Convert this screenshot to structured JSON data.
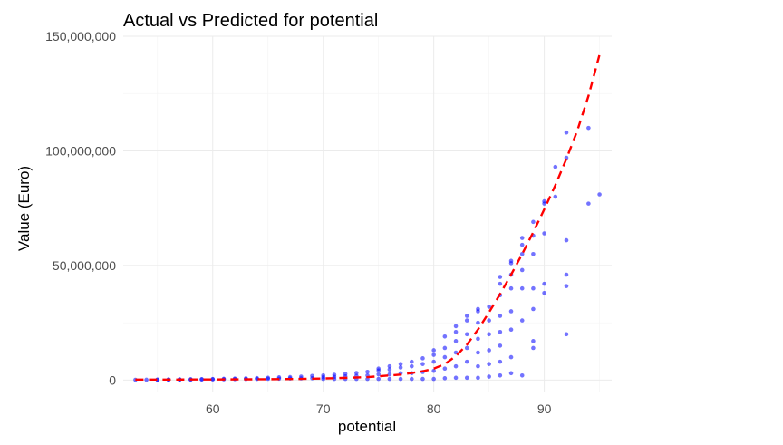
{
  "chart_data": {
    "type": "scatter",
    "title": "Actual vs Predicted for potential",
    "xlabel": "potential",
    "ylabel": "Value (Euro)",
    "xlim": [
      51.9,
      96.1
    ],
    "ylim": [
      -5000000,
      150000000
    ],
    "x_ticks": [
      60,
      70,
      80,
      90
    ],
    "x_tick_labels": [
      "60",
      "70",
      "80",
      "90"
    ],
    "y_ticks": [
      0,
      50000000,
      100000000,
      150000000
    ],
    "y_tick_labels": [
      "0",
      "50,000,000",
      "100,000,000",
      "150,000,000"
    ],
    "grid": true,
    "colors": {
      "points": "#0000ff",
      "fit_line": "#ff0000",
      "grid": "#ebebeb"
    },
    "series": [
      {
        "kind": "points",
        "points": [
          [
            53,
            120000
          ],
          [
            54,
            150000
          ],
          [
            55,
            120000
          ],
          [
            55,
            200000
          ],
          [
            56,
            150000
          ],
          [
            56,
            250000
          ],
          [
            57,
            200000
          ],
          [
            57,
            300000
          ],
          [
            58,
            200000
          ],
          [
            58,
            350000
          ],
          [
            59,
            250000
          ],
          [
            59,
            400000
          ],
          [
            60,
            300000
          ],
          [
            60,
            450000
          ],
          [
            61,
            350000
          ],
          [
            61,
            550000
          ],
          [
            62,
            400000
          ],
          [
            62,
            650000
          ],
          [
            63,
            450000
          ],
          [
            63,
            750000
          ],
          [
            64,
            500000
          ],
          [
            64,
            850000
          ],
          [
            65,
            550000
          ],
          [
            65,
            1000000
          ],
          [
            66,
            600000
          ],
          [
            66,
            1200000
          ],
          [
            67,
            700000
          ],
          [
            67,
            1300000
          ],
          [
            68,
            750000
          ],
          [
            68,
            1500000
          ],
          [
            69,
            800000
          ],
          [
            69,
            1800000
          ],
          [
            70,
            500000
          ],
          [
            70,
            1200000
          ],
          [
            70,
            2000000
          ],
          [
            71,
            500000
          ],
          [
            71,
            1400000
          ],
          [
            71,
            2300000
          ],
          [
            72,
            500000
          ],
          [
            72,
            1600000
          ],
          [
            72,
            2700000
          ],
          [
            73,
            500000
          ],
          [
            73,
            1800000
          ],
          [
            73,
            3100000
          ],
          [
            74,
            500000
          ],
          [
            74,
            2000000
          ],
          [
            74,
            3600000
          ],
          [
            75,
            500000
          ],
          [
            75,
            2500000
          ],
          [
            75,
            4200000
          ],
          [
            75,
            5000000
          ],
          [
            76,
            500000
          ],
          [
            76,
            2500000
          ],
          [
            76,
            4600000
          ],
          [
            76,
            6000000
          ],
          [
            77,
            500000
          ],
          [
            77,
            3000000
          ],
          [
            77,
            5500000
          ],
          [
            77,
            7000000
          ],
          [
            78,
            500000
          ],
          [
            78,
            3000000
          ],
          [
            78,
            6000000
          ],
          [
            78,
            8000000
          ],
          [
            79,
            500000
          ],
          [
            79,
            3500000
          ],
          [
            79,
            7000000
          ],
          [
            79,
            9500000
          ],
          [
            80,
            500000
          ],
          [
            80,
            4000000
          ],
          [
            80,
            8000000
          ],
          [
            80,
            11000000
          ],
          [
            80,
            13000000
          ],
          [
            81,
            800000
          ],
          [
            81,
            5000000
          ],
          [
            81,
            10000000
          ],
          [
            81,
            14000000
          ],
          [
            81,
            19000000
          ],
          [
            82,
            1000000
          ],
          [
            82,
            6000000
          ],
          [
            82,
            12000000
          ],
          [
            82,
            17000000
          ],
          [
            82,
            21000000
          ],
          [
            82,
            23500000
          ],
          [
            83,
            1000000
          ],
          [
            83,
            8000000
          ],
          [
            83,
            14000000
          ],
          [
            83,
            20000000
          ],
          [
            83,
            26000000
          ],
          [
            83,
            28000000
          ],
          [
            84,
            1000000
          ],
          [
            84,
            6000000
          ],
          [
            84,
            12000000
          ],
          [
            84,
            18000000
          ],
          [
            84,
            25000000
          ],
          [
            84,
            30000000
          ],
          [
            84,
            31000000
          ],
          [
            85,
            1500000
          ],
          [
            85,
            7000000
          ],
          [
            85,
            13000000
          ],
          [
            85,
            20000000
          ],
          [
            85,
            26000000
          ],
          [
            85,
            32000000
          ],
          [
            86,
            2000000
          ],
          [
            86,
            8000000
          ],
          [
            86,
            15000000
          ],
          [
            86,
            21000000
          ],
          [
            86,
            28000000
          ],
          [
            86,
            37000000
          ],
          [
            86,
            42000000
          ],
          [
            86,
            45000000
          ],
          [
            87,
            3000000
          ],
          [
            87,
            10000000
          ],
          [
            87,
            22000000
          ],
          [
            87,
            30000000
          ],
          [
            87,
            40000000
          ],
          [
            87,
            46000000
          ],
          [
            87,
            51000000
          ],
          [
            87,
            52000000
          ],
          [
            88,
            2000000
          ],
          [
            88,
            26000000
          ],
          [
            88,
            40000000
          ],
          [
            88,
            48000000
          ],
          [
            88,
            55000000
          ],
          [
            88,
            59000000
          ],
          [
            88,
            62000000
          ],
          [
            89,
            14000000
          ],
          [
            89,
            17000000
          ],
          [
            89,
            31000000
          ],
          [
            89,
            40000000
          ],
          [
            89,
            55000000
          ],
          [
            89,
            63000000
          ],
          [
            89,
            69000000
          ],
          [
            90,
            38000000
          ],
          [
            90,
            42000000
          ],
          [
            90,
            64000000
          ],
          [
            90,
            77000000
          ],
          [
            90,
            78000000
          ],
          [
            91,
            80000000
          ],
          [
            91,
            93000000
          ],
          [
            92,
            20000000
          ],
          [
            92,
            41000000
          ],
          [
            92,
            46000000
          ],
          [
            92,
            61000000
          ],
          [
            92,
            97000000
          ],
          [
            92,
            108000000
          ],
          [
            94,
            77000000
          ],
          [
            94,
            110000000
          ],
          [
            95,
            81000000
          ]
        ]
      },
      {
        "kind": "fit_line",
        "points": [
          [
            53,
            200000
          ],
          [
            56,
            220000
          ],
          [
            59,
            250000
          ],
          [
            62,
            300000
          ],
          [
            65,
            380000
          ],
          [
            68,
            500000
          ],
          [
            71,
            800000
          ],
          [
            74,
            1300000
          ],
          [
            77,
            2400000
          ],
          [
            79,
            3800000
          ],
          [
            80,
            5000000
          ],
          [
            81,
            7000000
          ],
          [
            82,
            10500000
          ],
          [
            83,
            15500000
          ],
          [
            84,
            22000000
          ],
          [
            85,
            29500000
          ],
          [
            86,
            37500000
          ],
          [
            87,
            46000000
          ],
          [
            88,
            55000000
          ],
          [
            89,
            64500000
          ],
          [
            90,
            74500000
          ],
          [
            91,
            85000000
          ],
          [
            92,
            96500000
          ],
          [
            93,
            109000000
          ],
          [
            94,
            124000000
          ],
          [
            95,
            142000000
          ]
        ]
      }
    ]
  }
}
